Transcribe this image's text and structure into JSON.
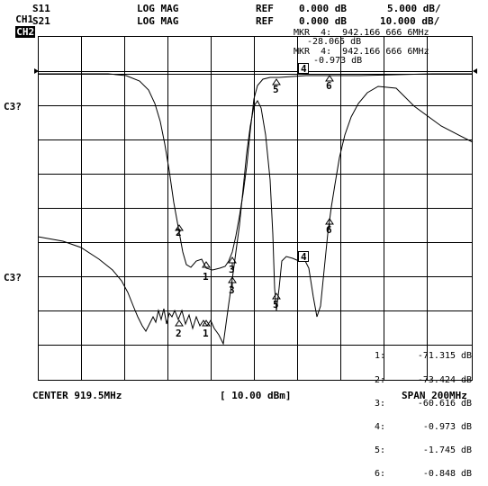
{
  "header": {
    "ch1": {
      "label": "CH1",
      "param": "S11",
      "format": "LOG MAG",
      "ref_label": "REF",
      "ref_value": "0.000 dB",
      "scale": "5.000 dB/"
    },
    "ch2": {
      "label": "CH2",
      "param": "S21",
      "format": "LOG MAG",
      "ref_label": "REF",
      "ref_value": "0.000 dB",
      "scale": "10.000 dB/"
    }
  },
  "markers": {
    "mkr1_line1": "MKR  4:  942.166 666 6MHz",
    "mkr1_line2": "-28.065 dB",
    "mkr2_line1": "MKR  4:  942.166 666 6MHz",
    "mkr2_line2": "-0.973 dB"
  },
  "side_labels": {
    "upper": "C3?",
    "lower": "C3?"
  },
  "marker_table": [
    {
      "num": "1:",
      "value": "-71.315 dB"
    },
    {
      "num": "2:",
      "value": "-73.424 dB"
    },
    {
      "num": "3:",
      "value": "-60.616 dB"
    },
    {
      "num": "4:",
      "value": "-0.973 dB"
    },
    {
      "num": "5:",
      "value": "-1.745 dB"
    },
    {
      "num": "6:",
      "value": "-0.848 dB"
    }
  ],
  "footer": {
    "center": "CENTER 919.5MHz",
    "power": "[ 10.00 dBm]",
    "span": "SPAN 200MHz"
  },
  "colors": {
    "background": "#ffffff",
    "trace": "#000000",
    "grid": "#000000"
  }
}
